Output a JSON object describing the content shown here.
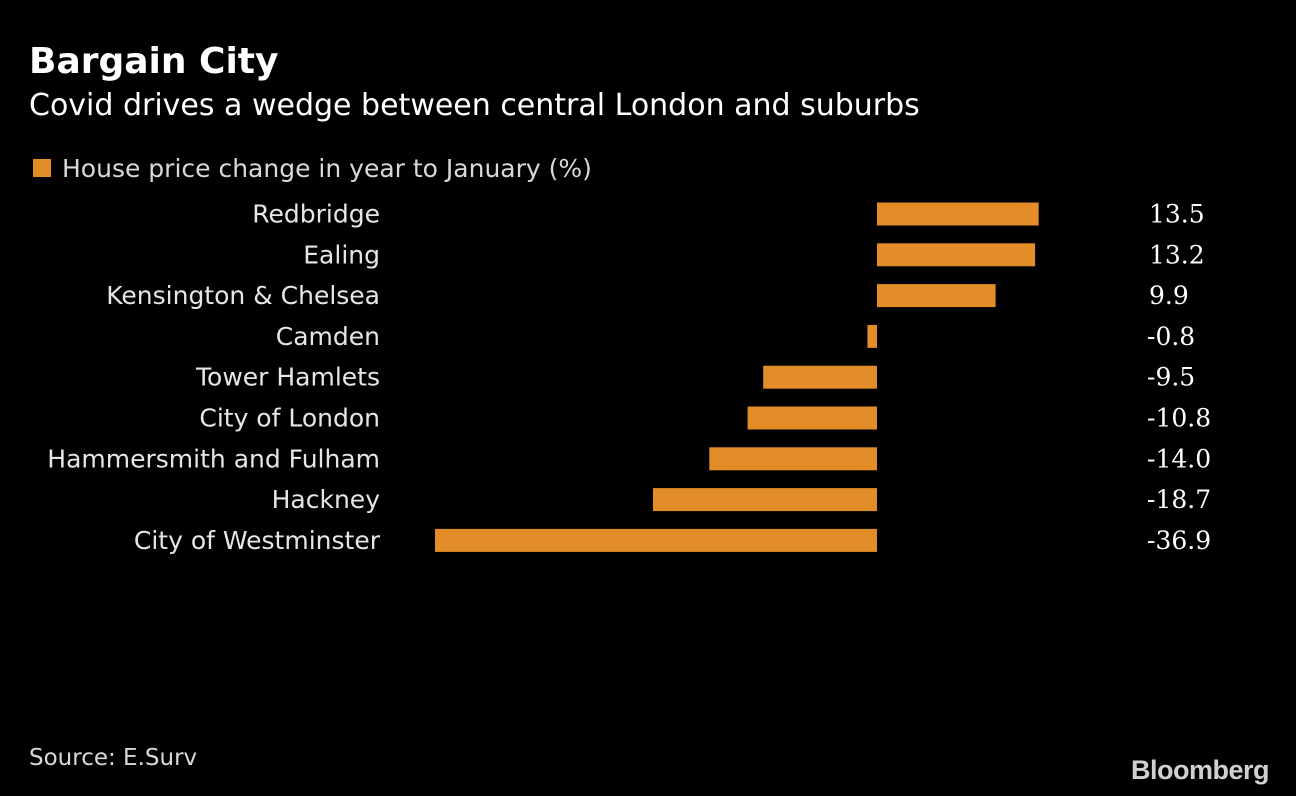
{
  "header": {
    "title": "Bargain City",
    "subtitle": "Covid drives a wedge between central London and suburbs"
  },
  "legend": {
    "label": "House price change in year to January (%)"
  },
  "footer": {
    "source": "Source: E.Surv",
    "brand": "Bloomberg"
  },
  "colors": {
    "background": "#000000",
    "bar": "#e28d27",
    "label_text": "#e6e6e6",
    "value_text": "#ffffff"
  },
  "chart_data": {
    "type": "bar",
    "orientation": "horizontal",
    "title": "Bargain City",
    "subtitle": "Covid drives a wedge between central London and suburbs",
    "series": [
      {
        "name": "House price change in year to January (%)",
        "values": [
          13.5,
          13.2,
          9.9,
          -0.8,
          -9.5,
          -10.8,
          -14.0,
          -18.7,
          -36.9
        ]
      }
    ],
    "categories": [
      "Redbridge",
      "Ealing",
      "Kensington & Chelsea",
      "Camden",
      "Tower Hamlets",
      "City of London",
      "Hammersmith and Fulham",
      "Hackney",
      "City of Westminster"
    ],
    "value_labels": [
      "13.5",
      "13.2",
      "9.9",
      "-0.8",
      "-9.5",
      "-10.8",
      "-14.0",
      "-18.7",
      "-36.9"
    ],
    "xlim": [
      -36.9,
      13.5
    ],
    "xlabel": "",
    "ylabel": "",
    "grid": false,
    "legend_position": "top-left"
  }
}
